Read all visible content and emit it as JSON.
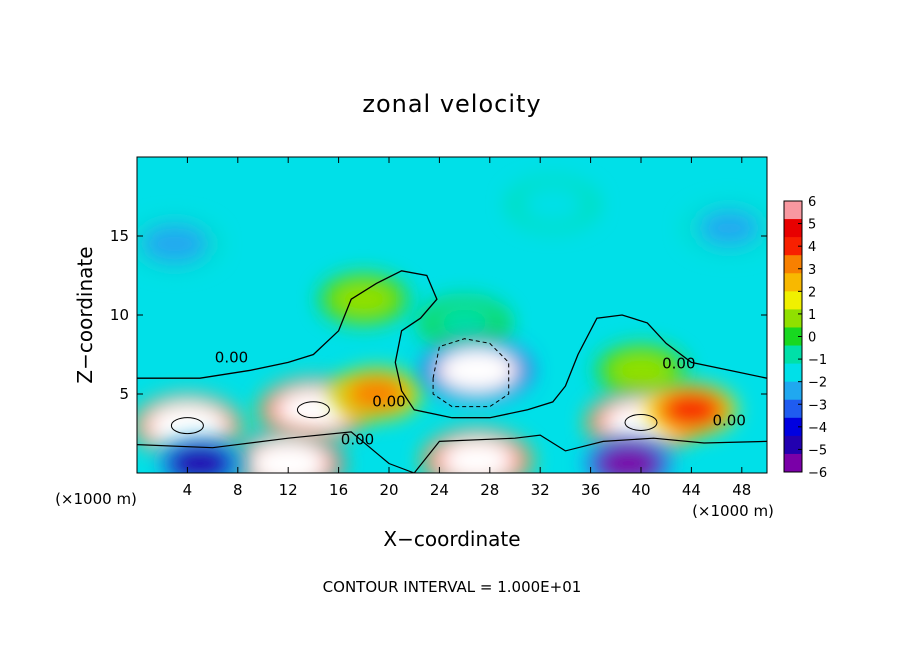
{
  "chart_data": {
    "type": "heatmap",
    "title": "zonal velocity",
    "xlabel": "X−coordinate",
    "ylabel": "Z−coordinate",
    "x_unit_left": "(×1000 m)",
    "x_unit_right": "(×1000 m)",
    "footer": "CONTOUR INTERVAL = 1.000E+01",
    "xlim": [
      0,
      50
    ],
    "ylim": [
      0,
      20
    ],
    "x_ticks": [
      4,
      8,
      12,
      16,
      20,
      24,
      28,
      32,
      36,
      40,
      44,
      48
    ],
    "x_tick_labels": [
      "4",
      "8",
      "12",
      "16",
      "20",
      "24",
      "28",
      "32",
      "36",
      "40",
      "44",
      "48"
    ],
    "y_ticks": [
      5,
      10,
      15
    ],
    "y_tick_labels": [
      "5",
      "10",
      "15"
    ],
    "colorbar": {
      "range": [
        -6,
        6
      ],
      "ticks": [
        6,
        5,
        4,
        3,
        2,
        1,
        0,
        -1,
        -2,
        -3,
        -4,
        -5,
        -6
      ],
      "tick_labels": [
        "6",
        "5",
        "4",
        "3",
        "2",
        "1",
        "0",
        "−1",
        "−2",
        "−3",
        "−4",
        "−5",
        "−6"
      ],
      "colors": [
        "#7a00a8",
        "#2200b0",
        "#0000e0",
        "#1f5cf0",
        "#20a8f0",
        "#00e0e8",
        "#00e0a8",
        "#18d820",
        "#90e000",
        "#f0f000",
        "#f8b800",
        "#f88000",
        "#f82000",
        "#e80000",
        "#f898a0"
      ]
    },
    "contour_labels": [
      "0.00",
      "0.00",
      "0.00",
      "0.00",
      "0.00"
    ],
    "background_value": -1.3,
    "features": [
      {
        "x": 3,
        "z": 14.5,
        "value": -2.4
      },
      {
        "x": 47,
        "z": 15.5,
        "value": -2.2
      },
      {
        "x": 33,
        "z": 17,
        "value": -1.7
      },
      {
        "x": 18,
        "z": 11,
        "value": 0.6
      },
      {
        "x": 26,
        "z": 9.5,
        "value": -0.4
      },
      {
        "x": 40,
        "z": 6.5,
        "value": 0.5
      },
      {
        "x": 4,
        "z": 3,
        "value": 7.5
      },
      {
        "x": 14,
        "z": 4,
        "value": 7
      },
      {
        "x": 19,
        "z": 5,
        "value": 3
      },
      {
        "x": 40,
        "z": 3.2,
        "value": 6.5
      },
      {
        "x": 44,
        "z": 4,
        "value": 4
      },
      {
        "x": 27,
        "z": 0.8,
        "value": 7
      },
      {
        "x": 12,
        "z": 0.6,
        "value": 8
      },
      {
        "x": 27,
        "z": 6.5,
        "value": -9
      },
      {
        "x": 5,
        "z": 0.6,
        "value": -5
      },
      {
        "x": 39,
        "z": 0.6,
        "value": -6
      }
    ]
  }
}
